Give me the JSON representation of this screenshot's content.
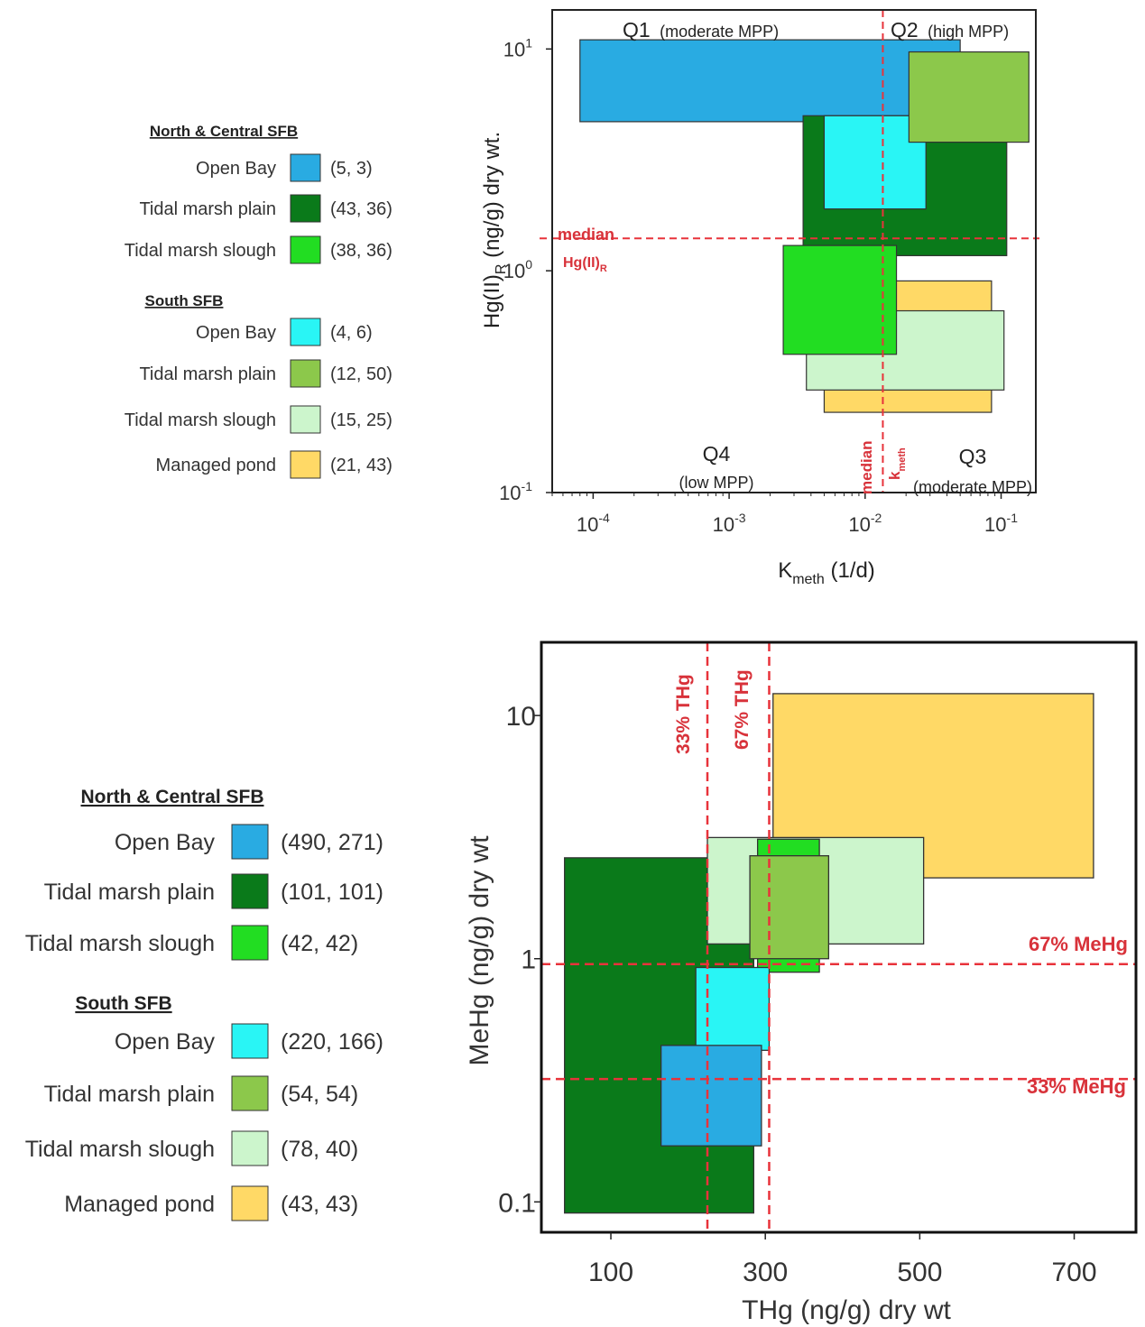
{
  "colors": {
    "north_open_bay": "#29abe2",
    "north_tidal_marsh_plain": "#0a7a1a",
    "north_tidal_marsh_slough": "#22dd22",
    "south_open_bay": "#29f5f5",
    "south_tidal_marsh_plain": "#8cc84b",
    "south_tidal_marsh_slough": "#ccf5cc",
    "south_managed_pond": "#ffd966",
    "reference_line": "#e8333b"
  },
  "chart_data": [
    {
      "type": "box",
      "xlabel": "K",
      "xlabel_sub": "meth",
      "xlabel_unit": " (1/d)",
      "ylabel": "Hg(II)",
      "ylabel_sub": "R",
      "ylabel_unit": " (ng/g) dry wt.",
      "xscale": "log",
      "yscale": "log",
      "xlim": [
        5e-05,
        0.18
      ],
      "ylim": [
        0.1,
        15
      ],
      "x_tick_values": [
        0.0001,
        0.001,
        0.01,
        0.1
      ],
      "x_ticks": [
        {
          "base": "10",
          "exp": "-4"
        },
        {
          "base": "10",
          "exp": "-3"
        },
        {
          "base": "10",
          "exp": "-2"
        },
        {
          "base": "10",
          "exp": "-1"
        }
      ],
      "y_tick_values": [
        0.1,
        1,
        10
      ],
      "y_ticks": [
        {
          "base": "10",
          "exp": "-1"
        },
        {
          "base": "10",
          "exp": "0"
        },
        {
          "base": "10",
          "exp": "1"
        }
      ],
      "legend": {
        "groups": [
          {
            "title": "North & Central SFB",
            "items": [
              {
                "label": "Open Bay",
                "n": "(5, 3)",
                "color": "#29abe2"
              },
              {
                "label": "Tidal marsh plain",
                "n": "(43, 36)",
                "color": "#0a7a1a"
              },
              {
                "label": "Tidal marsh slough",
                "n": "(38, 36)",
                "color": "#22dd22"
              }
            ]
          },
          {
            "title": "South SFB",
            "items": [
              {
                "label": "Open Bay",
                "n": "(4, 6)",
                "color": "#29f5f5"
              },
              {
                "label": "Tidal marsh plain",
                "n": "(12, 50)",
                "color": "#8cc84b"
              },
              {
                "label": "Tidal marsh slough",
                "n": "(15, 25)",
                "color": "#ccf5cc"
              },
              {
                "label": "Managed pond",
                "n": "(21, 43)",
                "color": "#ffd966"
              }
            ]
          }
        ]
      },
      "boxes": [
        {
          "series": "North & Central SFB Open Bay",
          "x": [
            8e-05,
            0.05
          ],
          "y": [
            4.7,
            11
          ],
          "color": "#29abe2"
        },
        {
          "series": "North & Central SFB Tidal marsh plain",
          "x": [
            0.0035,
            0.11
          ],
          "y": [
            1.17,
            5.0
          ],
          "color": "#0a7a1a"
        },
        {
          "series": "South SFB Open Bay",
          "x": [
            0.005,
            0.028
          ],
          "y": [
            1.9,
            5.0
          ],
          "color": "#29f5f5"
        },
        {
          "series": "South SFB Tidal marsh plain",
          "x": [
            0.021,
            0.16
          ],
          "y": [
            3.8,
            9.7
          ],
          "color": "#8cc84b"
        },
        {
          "series": "South SFB Managed pond",
          "x": [
            0.005,
            0.085
          ],
          "y": [
            0.23,
            0.9
          ],
          "color": "#ffd966"
        },
        {
          "series": "South SFB Tidal marsh slough",
          "x": [
            0.0037,
            0.105
          ],
          "y": [
            0.29,
            0.66
          ],
          "color": "#ccf5cc"
        },
        {
          "series": "North & Central SFB Tidal marsh slough",
          "x": [
            0.0025,
            0.017
          ],
          "y": [
            0.42,
            1.3
          ],
          "color": "#22dd22"
        }
      ],
      "reference_lines": {
        "median_kmeth": 0.0135,
        "median_hg": 1.4,
        "median_hg_label": "median",
        "median_hg_sublabel": "Hg(II)",
        "median_hg_sub": "R",
        "median_kmeth_label": "median",
        "median_kmeth_sublabel": "k",
        "median_kmeth_sub": "meth"
      },
      "quadrants": {
        "q1": "Q1",
        "q1_desc": "(moderate MPP)",
        "q2": "Q2",
        "q2_desc": "(high MPP)",
        "q3": "Q3",
        "q3_desc": "(moderate MPP)",
        "q4": "Q4",
        "q4_desc": "(low MPP)"
      }
    },
    {
      "type": "box",
      "xlabel": "THg (ng/g) dry wt",
      "ylabel": "MeHg (ng/g) dry wt",
      "xscale": "linear",
      "yscale": "log",
      "xlim": [
        10,
        780
      ],
      "ylim": [
        0.075,
        20
      ],
      "x_ticks": [
        100,
        300,
        500,
        700
      ],
      "y_ticks": [
        0.1,
        1,
        10
      ],
      "y_tick_labels": [
        "0.1",
        "1",
        "10"
      ],
      "legend": {
        "groups": [
          {
            "title": "North & Central SFB",
            "items": [
              {
                "label": "Open Bay",
                "n": "(490, 271)",
                "color": "#29abe2"
              },
              {
                "label": "Tidal marsh plain",
                "n": "(101, 101)",
                "color": "#0a7a1a"
              },
              {
                "label": "Tidal marsh slough",
                "n": "(42, 42)",
                "color": "#22dd22"
              }
            ]
          },
          {
            "title": "South SFB",
            "items": [
              {
                "label": "Open Bay",
                "n": "(220, 166)",
                "color": "#29f5f5"
              },
              {
                "label": "Tidal marsh plain",
                "n": "(54, 54)",
                "color": "#8cc84b"
              },
              {
                "label": "Tidal marsh slough",
                "n": "(78, 40)",
                "color": "#ccf5cc"
              },
              {
                "label": "Managed pond",
                "n": "(43, 43)",
                "color": "#ffd966"
              }
            ]
          }
        ]
      },
      "boxes": [
        {
          "series": "North & Central SFB Tidal marsh plain",
          "x": [
            40,
            285
          ],
          "y": [
            0.09,
            2.6
          ],
          "color": "#0a7a1a"
        },
        {
          "series": "South SFB Managed pond",
          "x": [
            310,
            725
          ],
          "y": [
            2.15,
            12.3
          ],
          "color": "#ffd966"
        },
        {
          "series": "South SFB Tidal marsh slough",
          "x": [
            225,
            505
          ],
          "y": [
            1.15,
            3.15
          ],
          "color": "#ccf5cc"
        },
        {
          "series": "North & Central SFB Tidal marsh slough",
          "x": [
            290,
            370
          ],
          "y": [
            0.88,
            3.1
          ],
          "color": "#22dd22"
        },
        {
          "series": "South SFB Tidal marsh plain",
          "x": [
            280,
            382
          ],
          "y": [
            1.0,
            2.65
          ],
          "color": "#8cc84b"
        },
        {
          "series": "South SFB Open Bay",
          "x": [
            210,
            305
          ],
          "y": [
            0.42,
            0.92
          ],
          "color": "#29f5f5"
        },
        {
          "series": "North & Central SFB Open Bay",
          "x": [
            165,
            295
          ],
          "y": [
            0.17,
            0.44
          ],
          "color": "#29abe2"
        }
      ],
      "reference_lines": {
        "thg_33": 225,
        "thg_67": 305,
        "mehg_33": 0.32,
        "mehg_67": 0.95,
        "thg_33_label": "33% THg",
        "thg_67_label": "67% THg",
        "mehg_33_label": "33% MeHg",
        "mehg_67_label": "67% MeHg"
      }
    }
  ]
}
